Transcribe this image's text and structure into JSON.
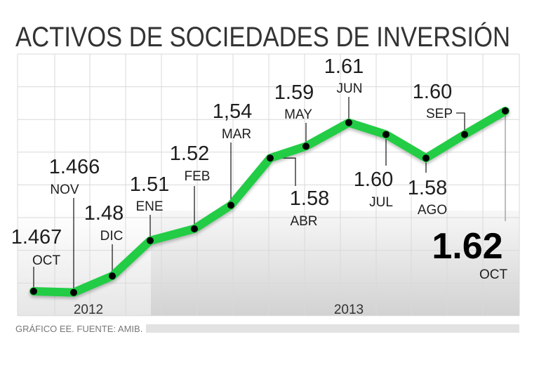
{
  "chart_data": {
    "type": "line",
    "title": "ACTIVOS DE SOCIEDADES DE INVERSIÓN",
    "source": "GRÁFICO EE. FUENTE: AMIB.",
    "years": [
      "2012",
      "2013"
    ],
    "categories": [
      "OCT",
      "NOV",
      "DIC",
      "ENE",
      "FEB",
      "MAR",
      "ABR",
      "MAY",
      "JUN",
      "JUL",
      "AGO",
      "SEP",
      "OCT"
    ],
    "value_labels": [
      "1.467",
      "1.466",
      "1.48",
      "1.51",
      "1.52",
      "1,54",
      "1.58",
      "1.59",
      "1.61",
      "1.60",
      "1.58",
      "1.60",
      "1.62"
    ],
    "values": [
      1.467,
      1.466,
      1.48,
      1.51,
      1.52,
      1.54,
      1.58,
      1.59,
      1.61,
      1.6,
      1.58,
      1.6,
      1.62
    ],
    "highlight_index": 12,
    "grid": true,
    "colors": {
      "line": "#22cc44",
      "marker": "#000000",
      "text": "#1e1e1e"
    }
  }
}
